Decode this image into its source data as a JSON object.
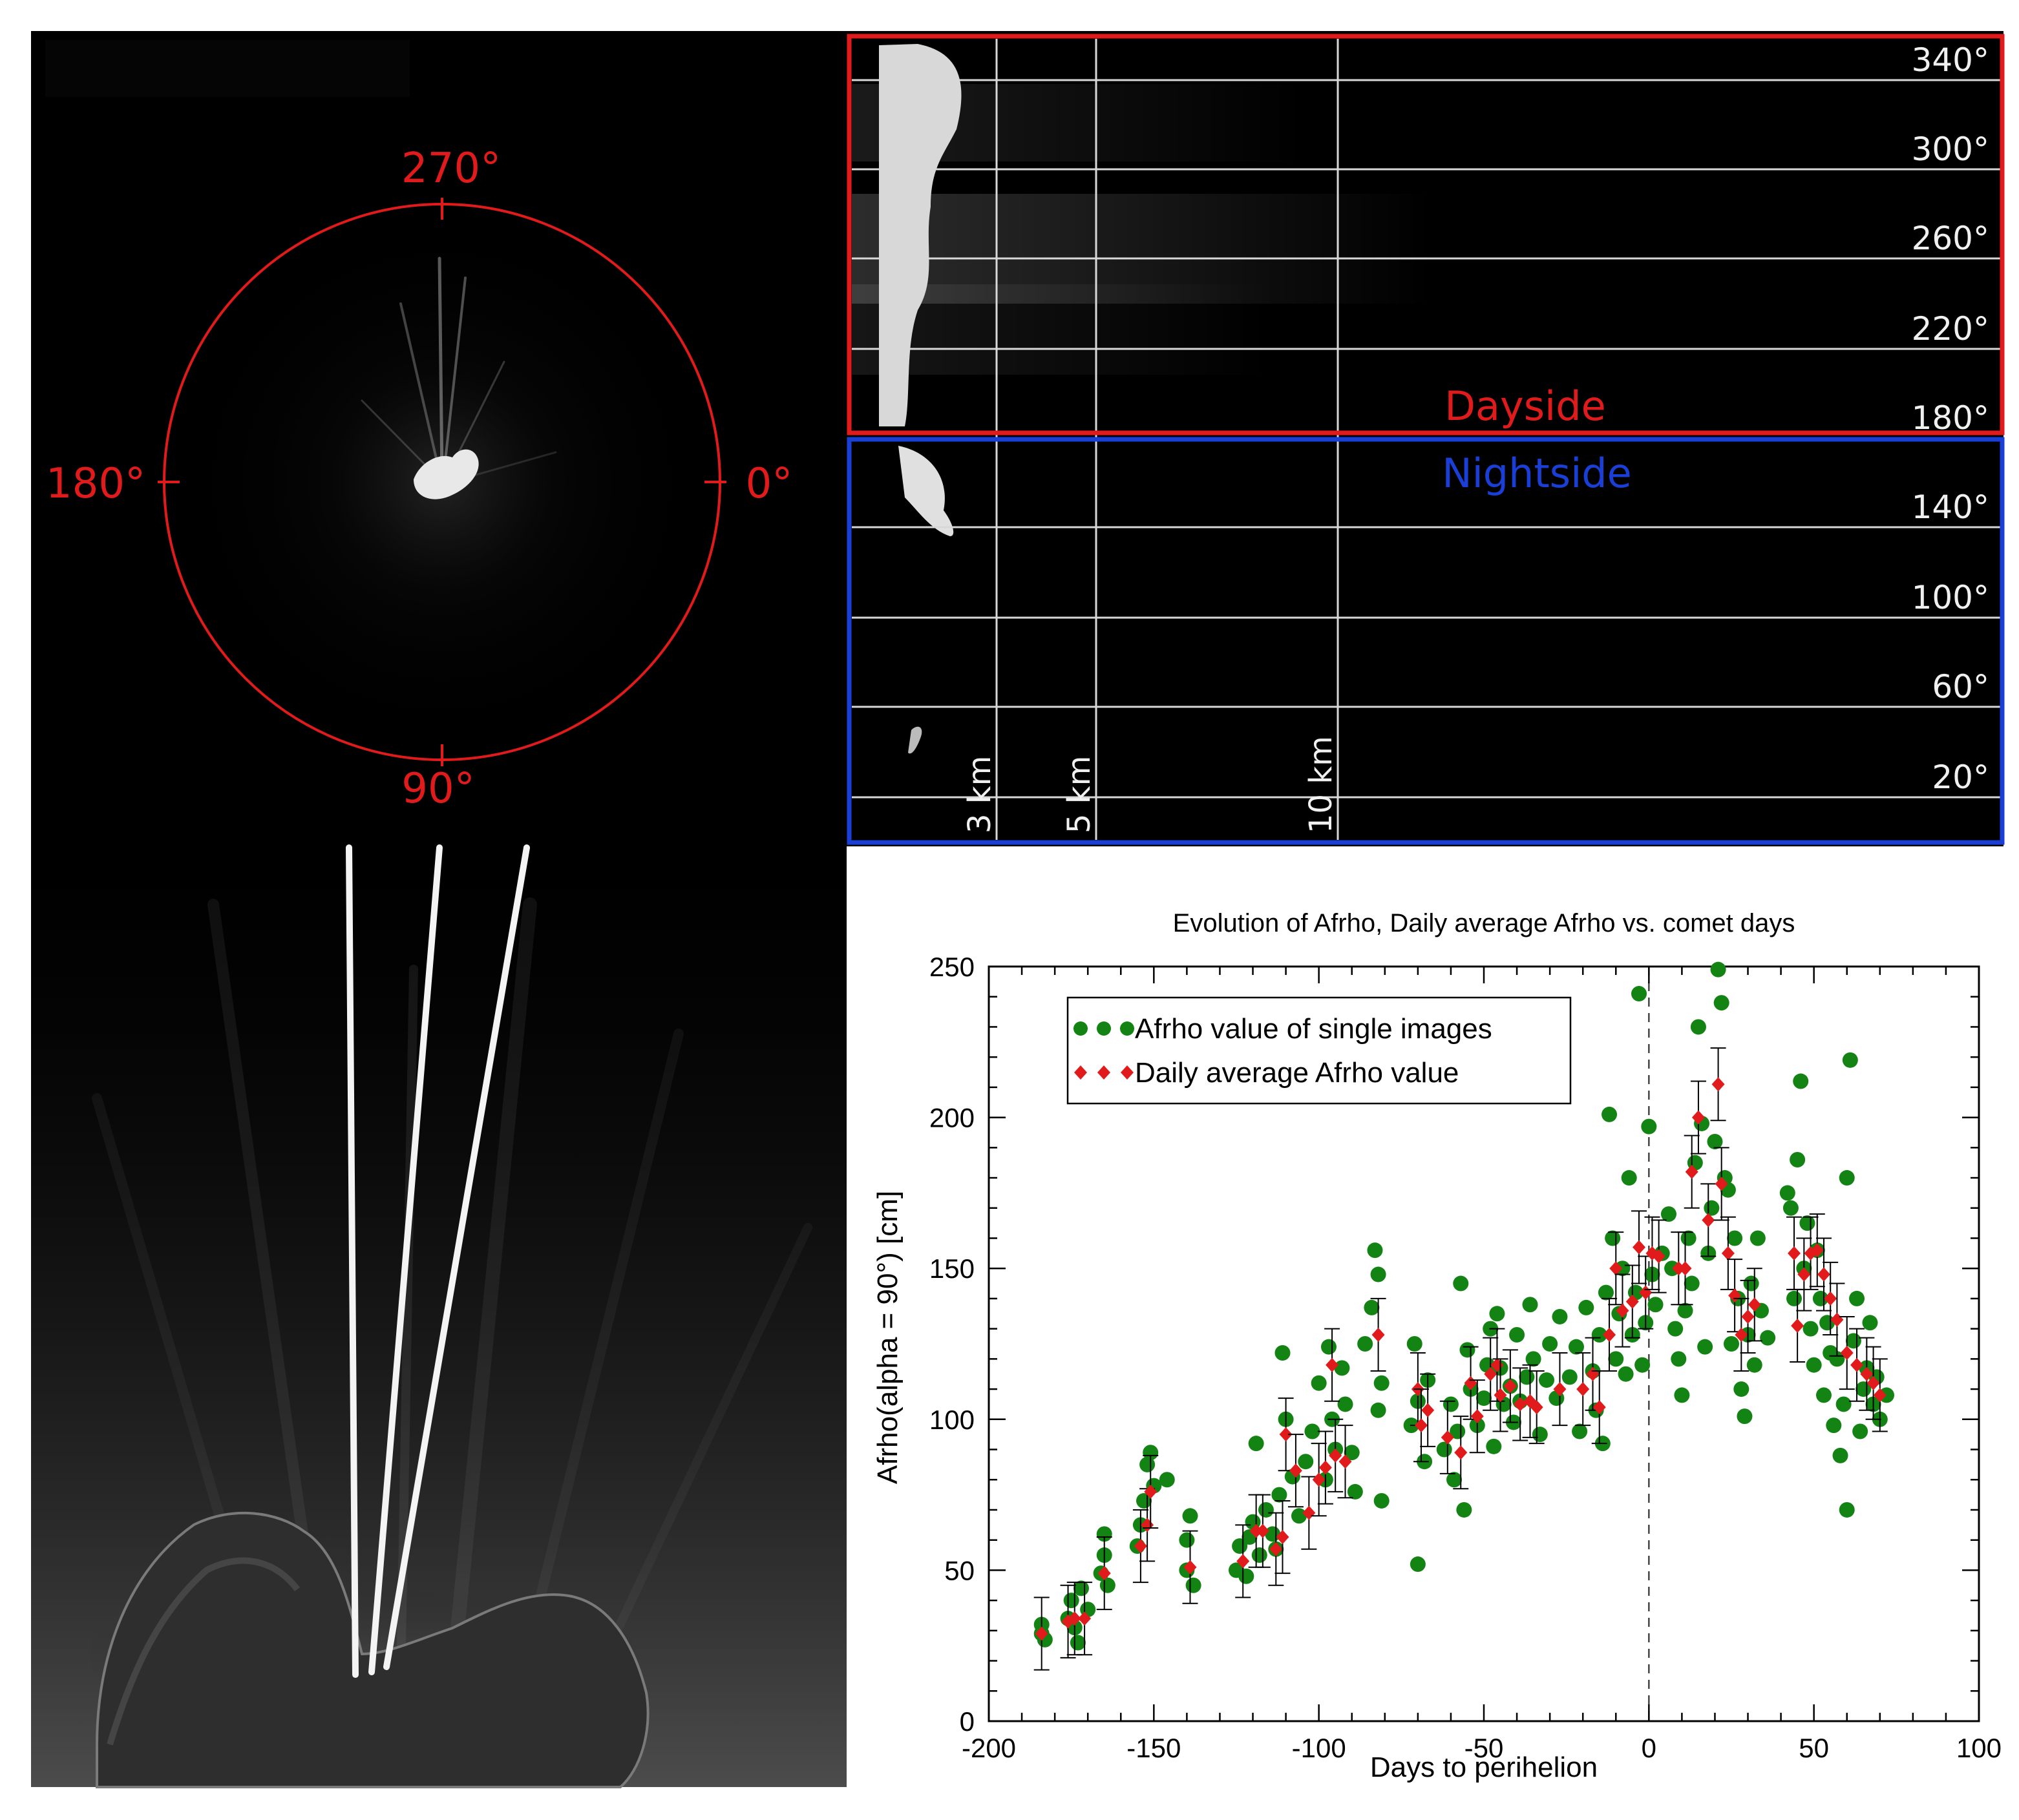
{
  "panel_polar": {
    "labels": [
      "270°",
      "180°",
      "0°",
      "90°"
    ],
    "ring_color": "#e11b1b"
  },
  "panel_unwrap": {
    "angle_labels": [
      "340°",
      "300°",
      "260°",
      "220°",
      "180°",
      "140°",
      "100°",
      "60°",
      "20°"
    ],
    "distance_labels": [
      "3 km",
      "5 km",
      "10 km"
    ],
    "dayside_label": "Dayside",
    "nightside_label": "Nightside",
    "dayside_color": "#e11b1b",
    "nightside_color": "#1a3fd6"
  },
  "panel_closeup": {
    "description_icon": "comet-nucleus-jets"
  },
  "chart_data": {
    "type": "scatter",
    "title": "Evolution of Afrho, Daily average Afrho vs. comet days",
    "xlabel": "Days to perihelion",
    "ylabel": "Afrho(alpha = 90°) [cm]",
    "xlim": [
      -200,
      100
    ],
    "ylim": [
      0,
      250
    ],
    "xticks": [
      -200,
      -150,
      -100,
      -50,
      0,
      50,
      100
    ],
    "yticks": [
      0,
      50,
      100,
      150,
      200,
      250
    ],
    "grid": false,
    "legend_position": "top-left",
    "perihelion_line_x": 0,
    "series": [
      {
        "name": "Afrho value of single images",
        "color": "#138413",
        "marker": "circle",
        "points": [
          [
            -184,
            29
          ],
          [
            -184,
            32
          ],
          [
            -183,
            27
          ],
          [
            -176,
            34
          ],
          [
            -175,
            40
          ],
          [
            -174,
            31
          ],
          [
            -173,
            26
          ],
          [
            -172,
            44
          ],
          [
            -170,
            37
          ],
          [
            -166,
            49
          ],
          [
            -165,
            55
          ],
          [
            -165,
            62
          ],
          [
            -164,
            45
          ],
          [
            -155,
            58
          ],
          [
            -154,
            65
          ],
          [
            -153,
            73
          ],
          [
            -152,
            85
          ],
          [
            -151,
            89
          ],
          [
            -150,
            78
          ],
          [
            -146,
            80
          ],
          [
            -140,
            50
          ],
          [
            -140,
            60
          ],
          [
            -139,
            68
          ],
          [
            -138,
            45
          ],
          [
            -125,
            50
          ],
          [
            -124,
            58
          ],
          [
            -122,
            48
          ],
          [
            -121,
            61
          ],
          [
            -120,
            66
          ],
          [
            -119,
            92
          ],
          [
            -118,
            55
          ],
          [
            -116,
            70
          ],
          [
            -114,
            62
          ],
          [
            -113,
            57
          ],
          [
            -112,
            75
          ],
          [
            -111,
            122
          ],
          [
            -110,
            100
          ],
          [
            -108,
            81
          ],
          [
            -106,
            68
          ],
          [
            -104,
            86
          ],
          [
            -102,
            96
          ],
          [
            -100,
            112
          ],
          [
            -98,
            80
          ],
          [
            -97,
            124
          ],
          [
            -96,
            100
          ],
          [
            -95,
            90
          ],
          [
            -93,
            117
          ],
          [
            -92,
            105
          ],
          [
            -90,
            89
          ],
          [
            -89,
            76
          ],
          [
            -86,
            125
          ],
          [
            -84,
            137
          ],
          [
            -83,
            156
          ],
          [
            -82,
            148
          ],
          [
            -82,
            103
          ],
          [
            -81,
            73
          ],
          [
            -81,
            112
          ],
          [
            -72,
            98
          ],
          [
            -71,
            125
          ],
          [
            -70,
            52
          ],
          [
            -70,
            106
          ],
          [
            -68,
            86
          ],
          [
            -67,
            113
          ],
          [
            -62,
            90
          ],
          [
            -60,
            105
          ],
          [
            -59,
            80
          ],
          [
            -58,
            96
          ],
          [
            -57,
            145
          ],
          [
            -56,
            70
          ],
          [
            -55,
            123
          ],
          [
            -54,
            110
          ],
          [
            -52,
            98
          ],
          [
            -50,
            107
          ],
          [
            -49,
            118
          ],
          [
            -48,
            130
          ],
          [
            -47,
            91
          ],
          [
            -46,
            135
          ],
          [
            -45,
            117
          ],
          [
            -44,
            105
          ],
          [
            -42,
            111
          ],
          [
            -41,
            99
          ],
          [
            -40,
            128
          ],
          [
            -39,
            106
          ],
          [
            -37,
            114
          ],
          [
            -36,
            138
          ],
          [
            -35,
            120
          ],
          [
            -33,
            95
          ],
          [
            -31,
            113
          ],
          [
            -30,
            125
          ],
          [
            -28,
            107
          ],
          [
            -27,
            134
          ],
          [
            -24,
            114
          ],
          [
            -22,
            124
          ],
          [
            -21,
            96
          ],
          [
            -19,
            137
          ],
          [
            -17,
            116
          ],
          [
            -16,
            103
          ],
          [
            -15,
            128
          ],
          [
            -14,
            92
          ],
          [
            -13,
            142
          ],
          [
            -12,
            201
          ],
          [
            -11,
            160
          ],
          [
            -10,
            120
          ],
          [
            -9,
            135
          ],
          [
            -8,
            150
          ],
          [
            -7,
            115
          ],
          [
            -6,
            180
          ],
          [
            -5,
            128
          ],
          [
            -4,
            142
          ],
          [
            -3,
            241
          ],
          [
            -2,
            118
          ],
          [
            -1,
            132
          ],
          [
            0,
            197
          ],
          [
            1,
            148
          ],
          [
            2,
            138
          ],
          [
            4,
            155
          ],
          [
            6,
            168
          ],
          [
            7,
            150
          ],
          [
            8,
            130
          ],
          [
            9,
            120
          ],
          [
            10,
            108
          ],
          [
            11,
            136
          ],
          [
            12,
            160
          ],
          [
            13,
            145
          ],
          [
            14,
            185
          ],
          [
            15,
            230
          ],
          [
            16,
            198
          ],
          [
            17,
            124
          ],
          [
            18,
            155
          ],
          [
            19,
            170
          ],
          [
            20,
            192
          ],
          [
            21,
            249
          ],
          [
            22,
            238
          ],
          [
            23,
            180
          ],
          [
            24,
            176
          ],
          [
            25,
            125
          ],
          [
            26,
            160
          ],
          [
            27,
            140
          ],
          [
            28,
            110
          ],
          [
            29,
            101
          ],
          [
            30,
            128
          ],
          [
            31,
            145
          ],
          [
            32,
            118
          ],
          [
            33,
            160
          ],
          [
            34,
            136
          ],
          [
            36,
            127
          ],
          [
            42,
            175
          ],
          [
            43,
            170
          ],
          [
            44,
            140
          ],
          [
            45,
            186
          ],
          [
            46,
            212
          ],
          [
            47,
            150
          ],
          [
            48,
            165
          ],
          [
            49,
            130
          ],
          [
            50,
            118
          ],
          [
            51,
            156
          ],
          [
            52,
            140
          ],
          [
            53,
            108
          ],
          [
            54,
            132
          ],
          [
            55,
            122
          ],
          [
            56,
            98
          ],
          [
            57,
            120
          ],
          [
            58,
            88
          ],
          [
            59,
            105
          ],
          [
            60,
            70
          ],
          [
            60,
            180
          ],
          [
            61,
            219
          ],
          [
            62,
            126
          ],
          [
            63,
            140
          ],
          [
            64,
            96
          ],
          [
            65,
            110
          ],
          [
            66,
            117
          ],
          [
            67,
            132
          ],
          [
            68,
            105
          ],
          [
            69,
            114
          ],
          [
            70,
            100
          ],
          [
            72,
            108
          ]
        ]
      },
      {
        "name": "Daily average Afrho value",
        "color": "#e11b1b",
        "marker": "diamond",
        "points": [
          [
            -184,
            29
          ],
          [
            -176,
            33
          ],
          [
            -174,
            34
          ],
          [
            -171,
            34
          ],
          [
            -165,
            49
          ],
          [
            -154,
            58
          ],
          [
            -152,
            65
          ],
          [
            -151,
            76
          ],
          [
            -139,
            51
          ],
          [
            -123,
            53
          ],
          [
            -119,
            63
          ],
          [
            -117,
            63
          ],
          [
            -113,
            57
          ],
          [
            -111,
            61
          ],
          [
            -110,
            95
          ],
          [
            -107,
            83
          ],
          [
            -103,
            69
          ],
          [
            -100,
            80
          ],
          [
            -98,
            84
          ],
          [
            -96,
            118
          ],
          [
            -95,
            88
          ],
          [
            -92,
            86
          ],
          [
            -82,
            128
          ],
          [
            -70,
            110
          ],
          [
            -69,
            98
          ],
          [
            -67,
            103
          ],
          [
            -61,
            94
          ],
          [
            -57,
            89
          ],
          [
            -54,
            112
          ],
          [
            -52,
            101
          ],
          [
            -48,
            115
          ],
          [
            -46,
            118
          ],
          [
            -45,
            108
          ],
          [
            -42,
            111
          ],
          [
            -39,
            105
          ],
          [
            -36,
            106
          ],
          [
            -34,
            104
          ],
          [
            -27,
            110
          ],
          [
            -20,
            110
          ],
          [
            -17,
            115
          ],
          [
            -15,
            104
          ],
          [
            -12,
            128
          ],
          [
            -10,
            150
          ],
          [
            -8,
            136
          ],
          [
            -5,
            139
          ],
          [
            -3,
            157
          ],
          [
            -1,
            142
          ],
          [
            1,
            155
          ],
          [
            3,
            154
          ],
          [
            9,
            150
          ],
          [
            11,
            150
          ],
          [
            13,
            182
          ],
          [
            15,
            200
          ],
          [
            18,
            166
          ],
          [
            21,
            211
          ],
          [
            22,
            178
          ],
          [
            24,
            155
          ],
          [
            26,
            141
          ],
          [
            28,
            128
          ],
          [
            30,
            134
          ],
          [
            32,
            138
          ],
          [
            44,
            155
          ],
          [
            45,
            131
          ],
          [
            47,
            148
          ],
          [
            49,
            155
          ],
          [
            51,
            156
          ],
          [
            53,
            148
          ],
          [
            55,
            140
          ],
          [
            57,
            133
          ],
          [
            60,
            122
          ],
          [
            63,
            118
          ],
          [
            66,
            115
          ],
          [
            68,
            112
          ],
          [
            70,
            108
          ]
        ]
      }
    ]
  }
}
